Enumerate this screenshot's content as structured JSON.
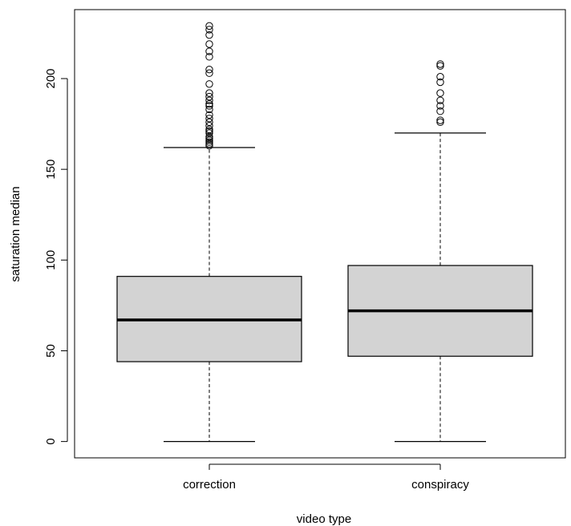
{
  "chart_data": {
    "type": "boxplot",
    "xlabel": "video type",
    "ylabel": "saturation median",
    "ylim": [
      -9,
      238
    ],
    "y_ticks": [
      0,
      50,
      100,
      150,
      200
    ],
    "grid": false,
    "legend": "none",
    "colors": {
      "box_fill": "#d3d3d3",
      "stroke": "#000000"
    },
    "categories": [
      "correction",
      "conspiracy"
    ],
    "boxes": [
      {
        "category": "correction",
        "whisker_low": 0,
        "q1": 44,
        "median": 67,
        "q3": 91,
        "whisker_high": 162,
        "outliers": [
          163,
          164,
          165,
          166,
          167,
          168,
          170,
          171,
          172,
          174,
          176,
          178,
          180,
          183,
          185,
          186,
          188,
          190,
          192,
          197,
          203,
          205,
          212,
          215,
          219,
          224,
          227,
          229
        ]
      },
      {
        "category": "conspiracy",
        "whisker_low": 0,
        "q1": 47,
        "median": 72,
        "q3": 97,
        "whisker_high": 170,
        "outliers": [
          176,
          177,
          182,
          185,
          188,
          192,
          198,
          201,
          207,
          208
        ]
      }
    ]
  }
}
